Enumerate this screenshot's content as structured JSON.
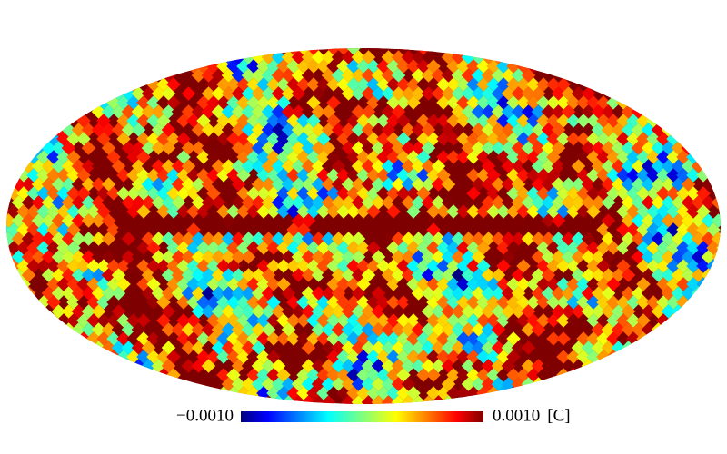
{
  "chart_data": {
    "type": "mollweide",
    "colorbar": {
      "clim": [
        -0.001,
        0.001
      ],
      "ticks": [
        {
          "value": -0.001,
          "label": "−0.0010"
        },
        {
          "value": 0.001,
          "label": "0.0010"
        }
      ],
      "unit": "[C]"
    }
  }
}
